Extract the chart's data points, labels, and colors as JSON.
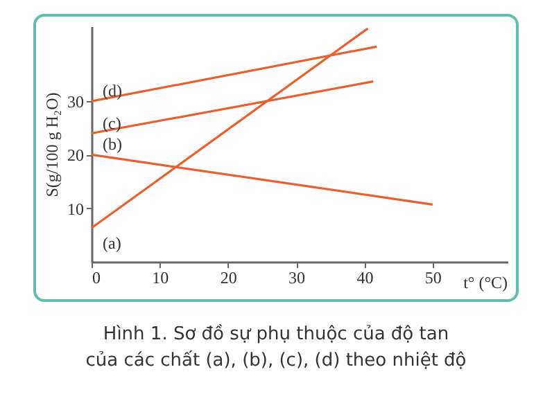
{
  "chart_data": {
    "type": "line",
    "xlabel": "t° (°C)",
    "ylabel": "S(g/100 g H₂O)",
    "annotations": [
      "Hình 1. Sơ đồ sự phụ thuộc của độ tan của các chất (a), (b), (c), (d) theo nhiệt độ"
    ],
    "xlim": [
      0,
      61
    ],
    "ylim": [
      0,
      44
    ],
    "xticks": [
      0,
      10,
      20,
      30,
      40,
      50
    ],
    "yticks": [
      10,
      20,
      30
    ],
    "series": [
      {
        "name": "(a)",
        "color": "#e8602c",
        "x": [
          0,
          40.5
        ],
        "values": [
          6.3,
          43.6
        ]
      },
      {
        "name": "(b)",
        "color": "#e8602c",
        "x": [
          0,
          50
        ],
        "values": [
          20,
          10.7
        ]
      },
      {
        "name": "(c)",
        "color": "#e8602c",
        "x": [
          0,
          41.3
        ],
        "values": [
          24,
          33.7
        ]
      },
      {
        "name": "(d)",
        "color": "#e8602c",
        "x": [
          0,
          41.8
        ],
        "values": [
          30,
          40.2
        ]
      }
    ],
    "grid": false,
    "legend": false,
    "marker": "none",
    "line_style": "solid"
  }
}
